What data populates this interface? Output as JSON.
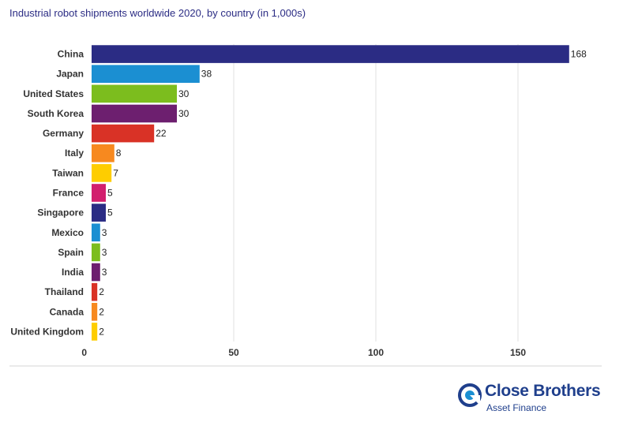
{
  "chart_data": {
    "type": "bar",
    "orientation": "horizontal",
    "title": "Industrial robot shipments worldwide 2020, by country (in 1,000s)",
    "categories": [
      "China",
      "Japan",
      "United States",
      "South Korea",
      "Germany",
      "Italy",
      "Taiwan",
      "France",
      "Singapore",
      "Mexico",
      "Spain",
      "India",
      "Thailand",
      "Canada",
      "United Kingdom"
    ],
    "values": [
      168,
      38,
      30,
      30,
      22,
      8,
      7,
      5,
      5,
      3,
      3,
      3,
      2,
      2,
      2
    ],
    "data_labels": [
      "168",
      "38",
      "30",
      "30",
      "22",
      "8",
      "7",
      "5",
      "5",
      "3",
      "3",
      "3",
      "2",
      "2",
      "2"
    ],
    "colors": [
      "#2b2c84",
      "#1b8fd2",
      "#7cbd1e",
      "#6d1f6f",
      "#d93226",
      "#f7891f",
      "#fecd00",
      "#d21f6e",
      "#2b2c84",
      "#1b8fd2",
      "#7cbd1e",
      "#6d1f6f",
      "#d93226",
      "#f7891f",
      "#fecd00"
    ],
    "xlim": [
      0,
      175
    ],
    "x_ticks": [
      0,
      50,
      100,
      150
    ],
    "x_tick_labels": [
      "0",
      "50",
      "100",
      "150"
    ],
    "grid": "vertical",
    "xlabel": "",
    "ylabel": ""
  },
  "branding": {
    "name": "Close Brothers",
    "subtitle": "Asset Finance",
    "brand_color": "#1f3f8c",
    "accent_color": "#1b8fd2",
    "icon": "close-brothers-logo-icon"
  }
}
